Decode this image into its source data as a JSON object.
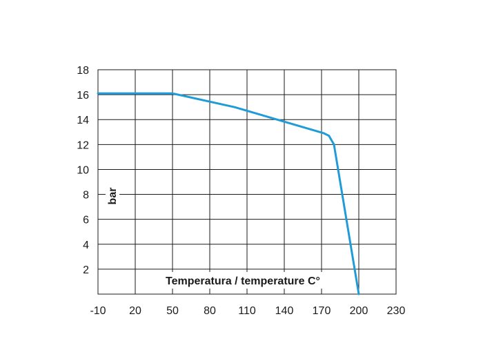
{
  "colors": {
    "series": "#1f9bd7",
    "grid": "#1a1a1a",
    "text": "#1a1a1a"
  },
  "chart_data": {
    "type": "line",
    "title": "",
    "xlabel": "Temperatura / temperature C°",
    "ylabel": "bar",
    "grid": true,
    "xlim": [
      -10,
      230
    ],
    "ylim": [
      0,
      18
    ],
    "xticks": [
      -10,
      20,
      50,
      80,
      110,
      140,
      170,
      200,
      230
    ],
    "xtick_labels": [
      "-10",
      "20",
      "50",
      "80",
      "110",
      "140",
      "170",
      "200",
      "230"
    ],
    "yticks": [
      2,
      4,
      6,
      8,
      10,
      12,
      14,
      16,
      18
    ],
    "ytick_labels": [
      "2",
      "4",
      "6",
      "8",
      "10",
      "12",
      "14",
      "16",
      "18"
    ],
    "series": [
      {
        "x": [
          -10,
          50,
          100,
          172,
          176,
          180,
          200
        ],
        "y": [
          16.1,
          16.1,
          15.0,
          12.9,
          12.7,
          12.0,
          0
        ]
      }
    ]
  }
}
